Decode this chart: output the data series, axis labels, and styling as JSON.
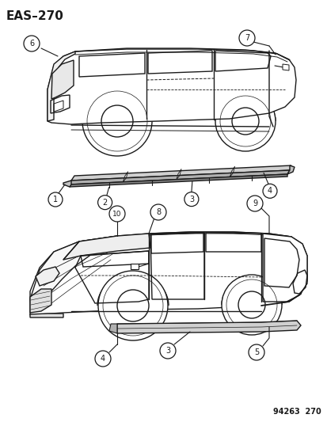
{
  "title": "EAS–270",
  "bg_color": "#ffffff",
  "line_color": "#1a1a1a",
  "fig_width": 4.14,
  "fig_height": 5.33,
  "dpi": 100,
  "footer_text": "94263  270"
}
